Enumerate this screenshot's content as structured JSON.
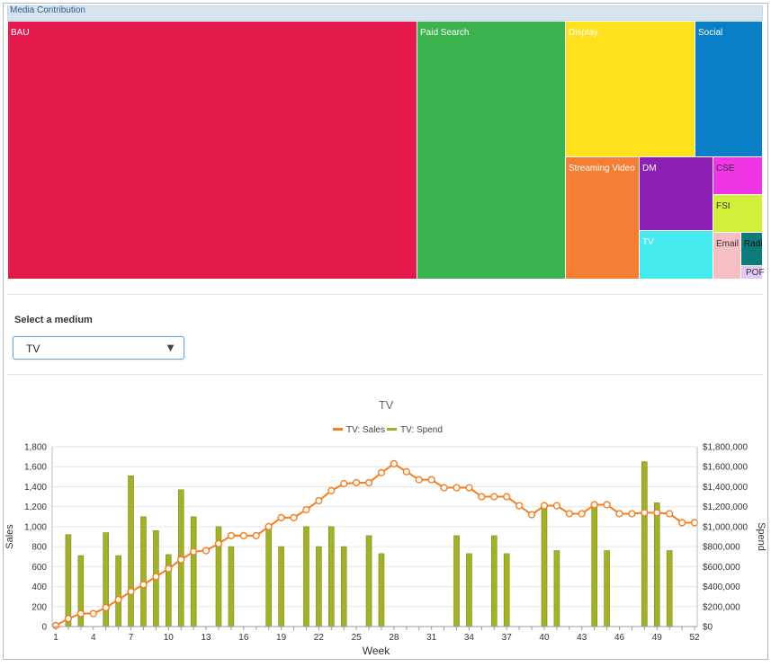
{
  "treemap": {
    "title": "Media Contribution",
    "tiles": [
      {
        "label": "BAU",
        "color": "#e31a4b",
        "interactable": true
      },
      {
        "label": "Paid Search",
        "color": "#3db34f",
        "interactable": true
      },
      {
        "label": "Display",
        "color": "#ffe11e",
        "interactable": true
      },
      {
        "label": "Social",
        "color": "#0a7fc8",
        "interactable": true
      },
      {
        "label": "Streaming Video",
        "color": "#f47e34",
        "interactable": true
      },
      {
        "label": "DM",
        "color": "#8e1fb4",
        "interactable": true
      },
      {
        "label": "TV",
        "color": "#45ebee",
        "interactable": true
      },
      {
        "label": "CSE",
        "color": "#ef36e6",
        "interactable": true
      },
      {
        "label": "FSI",
        "color": "#d2f03a",
        "interactable": true
      },
      {
        "label": "Email",
        "color": "#f6bfc3",
        "interactable": true
      },
      {
        "label": "Radi",
        "color": "#0c7b7a",
        "interactable": true
      },
      {
        "label": "POF",
        "color": "#e2c8f7",
        "interactable": true
      }
    ]
  },
  "medium_select": {
    "label": "Select a medium",
    "value": "TV"
  },
  "chart_data": {
    "type": "bar+line",
    "title": "TV",
    "xlabel": "Week",
    "ylabel_left": "Sales",
    "ylabel_right": "Spend",
    "x_ticks": [
      "1",
      "4",
      "7",
      "10",
      "13",
      "16",
      "19",
      "22",
      "25",
      "28",
      "31",
      "34",
      "37",
      "40",
      "43",
      "46",
      "49",
      "52"
    ],
    "y_left_ticks": [
      "0",
      "200",
      "400",
      "600",
      "800",
      "1,000",
      "1,200",
      "1,400",
      "1,600",
      "1,800"
    ],
    "y_right_ticks": [
      "$0",
      "$200,000",
      "$400,000",
      "$600,000",
      "$800,000",
      "$1,000,000",
      "$1,200,000",
      "$1,400,000",
      "$1,600,000",
      "$1,800,000"
    ],
    "ylim_left": [
      0,
      1800
    ],
    "ylim_right": [
      0,
      1800000
    ],
    "legend_position": "top-center",
    "series": [
      {
        "name": "TV: Sales",
        "type": "line",
        "axis": "left",
        "color": "#f47e20",
        "values": [
          10,
          80,
          130,
          130,
          190,
          270,
          350,
          420,
          500,
          580,
          670,
          750,
          760,
          830,
          910,
          910,
          910,
          1000,
          1090,
          1090,
          1170,
          1260,
          1360,
          1430,
          1440,
          1440,
          1540,
          1630,
          1550,
          1470,
          1470,
          1390,
          1390,
          1390,
          1300,
          1300,
          1300,
          1210,
          1120,
          1210,
          1210,
          1130,
          1130,
          1220,
          1220,
          1130,
          1130,
          1140,
          1140,
          1130,
          1040,
          1040
        ]
      },
      {
        "name": "TV: Spend",
        "type": "bar",
        "axis": "right",
        "color": "#a2b02a",
        "values": [
          0,
          920000,
          710000,
          0,
          940000,
          710000,
          1510000,
          1100000,
          960000,
          720000,
          1370000,
          1100000,
          0,
          1000000,
          800000,
          0,
          0,
          1000000,
          800000,
          0,
          1000000,
          800000,
          1000000,
          800000,
          0,
          910000,
          730000,
          0,
          0,
          0,
          0,
          0,
          910000,
          730000,
          0,
          910000,
          730000,
          0,
          0,
          1230000,
          760000,
          0,
          0,
          1230000,
          760000,
          0,
          0,
          1650000,
          1240000,
          760000,
          0,
          0
        ]
      }
    ]
  }
}
